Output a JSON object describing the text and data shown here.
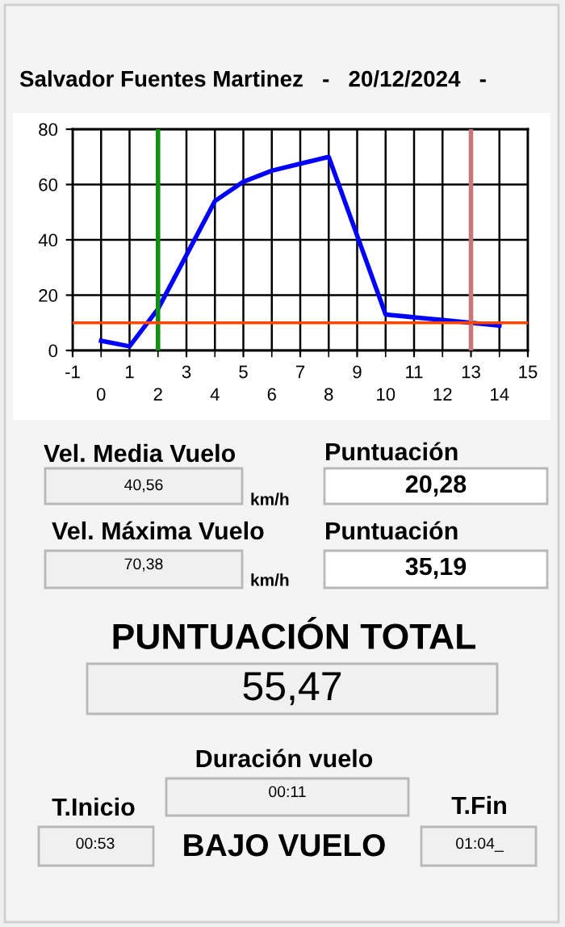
{
  "chart_data": [
    {
      "type": "line",
      "title": "Salvador Fuentes Martinez   -   20/12/2024   -",
      "x": [
        0,
        1,
        2,
        3,
        4,
        5,
        6,
        7,
        8,
        9,
        10,
        11,
        12,
        13,
        14
      ],
      "series": [
        {
          "color": "#0000ff",
          "values": [
            3.5,
            1.5,
            15,
            34.5,
            54,
            61,
            65,
            67.5,
            70,
            41.5,
            13,
            12,
            11,
            10,
            9
          ]
        }
      ],
      "xlim": [
        -1,
        15
      ],
      "xticks": [
        -1,
        1,
        3,
        5,
        7,
        9,
        11,
        13,
        15
      ],
      "x2lim": [
        -1,
        15
      ],
      "x2ticks": [
        0,
        2,
        4,
        6,
        8,
        10,
        12,
        14
      ],
      "ylim": [
        0,
        80
      ],
      "yticks": [
        0,
        20,
        40,
        60,
        80
      ],
      "grid": true,
      "ref_lines": [
        {
          "axis": "x",
          "value": 2,
          "color": "#109010"
        },
        {
          "axis": "x",
          "value": 13,
          "color": "#c87878"
        },
        {
          "axis": "y",
          "value": 10,
          "color": "#ff4500"
        }
      ]
    },
    {
      "type": "other",
      "annotations": [
        "Vel. Media Vuelo",
        "40,56",
        "km/h",
        "Puntuación",
        "20,28",
        "Vel. Máxima Vuelo",
        "70,38",
        "km/h",
        "Puntuación",
        "35,19",
        "PUNTUACIÓN TOTAL",
        "55,47",
        "Duración vuelo",
        "00:11",
        "T.Inicio",
        "00:53",
        "BAJO VUELO",
        "T.Fin",
        "01:04_"
      ]
    }
  ]
}
